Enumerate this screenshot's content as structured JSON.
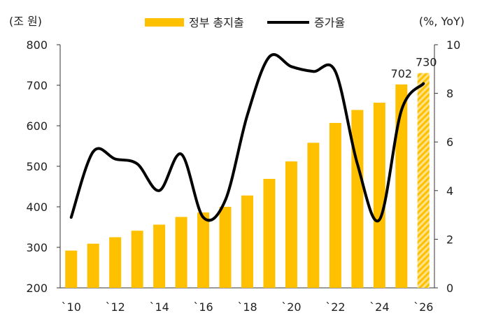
{
  "chart_data": {
    "type": "bar",
    "title": "",
    "left_axis_unit": "(조 원)",
    "right_axis_unit": "(%, YoY)",
    "left_ylim": [
      200,
      800
    ],
    "left_yticks": [
      200,
      300,
      400,
      500,
      600,
      700,
      800
    ],
    "right_ylim": [
      0,
      10
    ],
    "right_yticks": [
      0,
      2,
      4,
      6,
      8,
      10
    ],
    "x_tick_labels": [
      "`10",
      "`12",
      "`14",
      "`16",
      "`18",
      "`20",
      "`22",
      "`24",
      "`26"
    ],
    "years": [
      2010,
      2011,
      2012,
      2013,
      2014,
      2015,
      2016,
      2017,
      2018,
      2019,
      2020,
      2021,
      2022,
      2023,
      2024,
      2025,
      2026
    ],
    "legend_position": "top",
    "grid": false,
    "series": [
      {
        "name": "정부 총지출",
        "type": "bar",
        "axis": "left",
        "color": "#FFC000",
        "values": [
          292,
          309,
          325,
          341,
          356,
          375,
          386,
          400,
          428,
          469,
          512,
          558,
          607,
          639,
          657,
          702,
          730
        ],
        "forecast_from_index": 16,
        "data_labels": [
          {
            "index": 15,
            "text": "702"
          },
          {
            "index": 16,
            "text": "730"
          }
        ]
      },
      {
        "name": "증가율",
        "type": "line",
        "axis": "right",
        "color": "#000000",
        "values": [
          2.9,
          5.6,
          5.3,
          5.1,
          4.0,
          5.5,
          2.9,
          3.6,
          7.1,
          9.5,
          9.1,
          8.9,
          8.9,
          5.1,
          2.8,
          7.3,
          8.4
        ]
      }
    ]
  }
}
